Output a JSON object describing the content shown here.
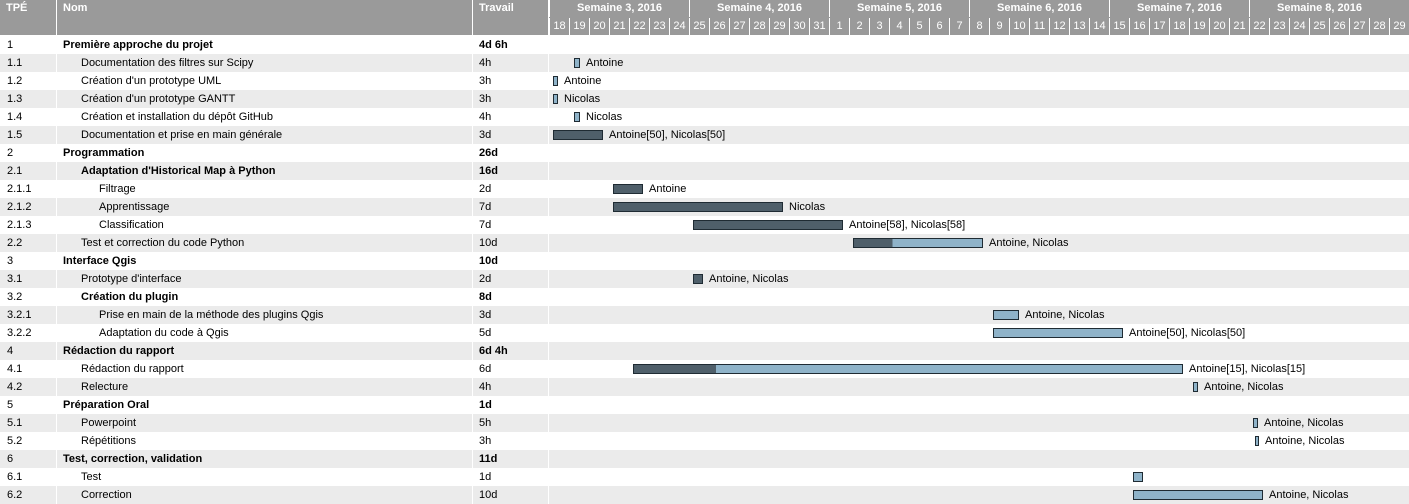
{
  "header": {
    "wbs": "TPÉ",
    "name": "Nom",
    "work": "Travail"
  },
  "weeks": [
    "Semaine 3, 2016",
    "Semaine 4, 2016",
    "Semaine 5, 2016",
    "Semaine 6, 2016",
    "Semaine 7, 2016",
    "Semaine 8, 2016"
  ],
  "days": [
    "18",
    "19",
    "20",
    "21",
    "22",
    "23",
    "24",
    "25",
    "26",
    "27",
    "28",
    "29",
    "30",
    "31",
    "1",
    "2",
    "3",
    "4",
    "5",
    "6",
    "7",
    "8",
    "9",
    "10",
    "11",
    "12",
    "13",
    "14",
    "15",
    "16",
    "17",
    "18",
    "19",
    "20",
    "21",
    "22",
    "23",
    "24",
    "25",
    "26",
    "27",
    "28",
    "29"
  ],
  "colors": {
    "done": "#4f5f6a",
    "todo": "#8fb3c9",
    "header": "#9a9a9a",
    "alt_row": "#ebebeb"
  },
  "chart_data": {
    "type": "gantt",
    "time_unit": "day",
    "tasks": [
      {
        "wbs": "1",
        "name": "Première approche du projet",
        "work": "4d 6h",
        "level": 0,
        "summary": true
      },
      {
        "wbs": "1.1",
        "name": "Documentation des filtres sur Scipy",
        "work": "4h",
        "level": 1,
        "start": 1.25,
        "end": 1.55,
        "progress": 0,
        "resources": "Antoine"
      },
      {
        "wbs": "1.2",
        "name": "Création d'un prototype UML",
        "work": "3h",
        "level": 1,
        "start": 0.2,
        "end": 0.45,
        "progress": 0,
        "resources": "Antoine"
      },
      {
        "wbs": "1.3",
        "name": "Création d'un prototype GANTT",
        "work": "3h",
        "level": 1,
        "start": 0.2,
        "end": 0.45,
        "progress": 0,
        "resources": "Nicolas"
      },
      {
        "wbs": "1.4",
        "name": "Création et installation du dépôt GitHub",
        "work": "4h",
        "level": 1,
        "start": 1.25,
        "end": 1.55,
        "progress": 0,
        "resources": "Nicolas"
      },
      {
        "wbs": "1.5",
        "name": "Documentation et prise en main générale",
        "work": "3d",
        "level": 1,
        "start": 0.2,
        "end": 2.7,
        "progress": 1,
        "resources": "Antoine[50], Nicolas[50]"
      },
      {
        "wbs": "2",
        "name": "Programmation",
        "work": "26d",
        "level": 0,
        "summary": true
      },
      {
        "wbs": "2.1",
        "name": "Adaptation d'Historical Map à Python",
        "work": "16d",
        "level": 1,
        "summary": true
      },
      {
        "wbs": "2.1.1",
        "name": "Filtrage",
        "work": "2d",
        "level": 2,
        "start": 3.2,
        "end": 4.7,
        "progress": 1,
        "resources": "Antoine"
      },
      {
        "wbs": "2.1.2",
        "name": "Apprentissage",
        "work": "7d",
        "level": 2,
        "start": 3.2,
        "end": 11.7,
        "progress": 1,
        "resources": "Nicolas"
      },
      {
        "wbs": "2.1.3",
        "name": "Classification",
        "work": "7d",
        "level": 2,
        "start": 7.2,
        "end": 14.7,
        "progress": 1,
        "resources": "Antoine[58], Nicolas[58]"
      },
      {
        "wbs": "2.2",
        "name": "Test et correction du code Python",
        "work": "10d",
        "level": 1,
        "start": 15.2,
        "end": 21.7,
        "progress": 0.3,
        "resources": "Antoine, Nicolas"
      },
      {
        "wbs": "3",
        "name": "Interface Qgis",
        "work": "10d",
        "level": 0,
        "summary": true
      },
      {
        "wbs": "3.1",
        "name": "Prototype d'interface",
        "work": "2d",
        "level": 1,
        "start": 7.2,
        "end": 7.7,
        "progress": 1,
        "resources": "Antoine, Nicolas"
      },
      {
        "wbs": "3.2",
        "name": "Création du plugin",
        "work": "8d",
        "level": 1,
        "summary": true
      },
      {
        "wbs": "3.2.1",
        "name": "Prise en main de la méthode des plugins Qgis",
        "work": "3d",
        "level": 2,
        "start": 22.2,
        "end": 23.5,
        "progress": 0,
        "resources": "Antoine, Nicolas"
      },
      {
        "wbs": "3.2.2",
        "name": "Adaptation du code à Qgis",
        "work": "5d",
        "level": 2,
        "start": 22.2,
        "end": 28.7,
        "progress": 0,
        "resources": "Antoine[50], Nicolas[50]"
      },
      {
        "wbs": "4",
        "name": "Rédaction du rapport",
        "work": "6d 4h",
        "level": 0,
        "summary": true
      },
      {
        "wbs": "4.1",
        "name": "Rédaction du rapport",
        "work": "6d",
        "level": 1,
        "start": 4.2,
        "end": 31.7,
        "progress": 0.15,
        "resources": "Antoine[15], Nicolas[15]"
      },
      {
        "wbs": "4.2",
        "name": "Relecture",
        "work": "4h",
        "level": 1,
        "start": 32.2,
        "end": 32.45,
        "progress": 0,
        "resources": "Antoine, Nicolas"
      },
      {
        "wbs": "5",
        "name": "Préparation Oral",
        "work": "1d",
        "level": 0,
        "summary": true
      },
      {
        "wbs": "5.1",
        "name": "Powerpoint",
        "work": "5h",
        "level": 1,
        "start": 35.2,
        "end": 35.45,
        "progress": 0,
        "resources": "Antoine, Nicolas"
      },
      {
        "wbs": "5.2",
        "name": "Répétitions",
        "work": "3h",
        "level": 1,
        "start": 35.3,
        "end": 35.5,
        "progress": 0,
        "resources": "Antoine, Nicolas"
      },
      {
        "wbs": "6",
        "name": "Test, correction, validation",
        "work": "11d",
        "level": 0,
        "summary": true
      },
      {
        "wbs": "6.1",
        "name": "Test",
        "work": "1d",
        "level": 1,
        "start": 29.2,
        "end": 29.7,
        "progress": 0,
        "resources": ""
      },
      {
        "wbs": "6.2",
        "name": "Correction",
        "work": "10d",
        "level": 1,
        "start": 29.2,
        "end": 35.7,
        "progress": 0,
        "resources": "Antoine, Nicolas"
      }
    ]
  }
}
